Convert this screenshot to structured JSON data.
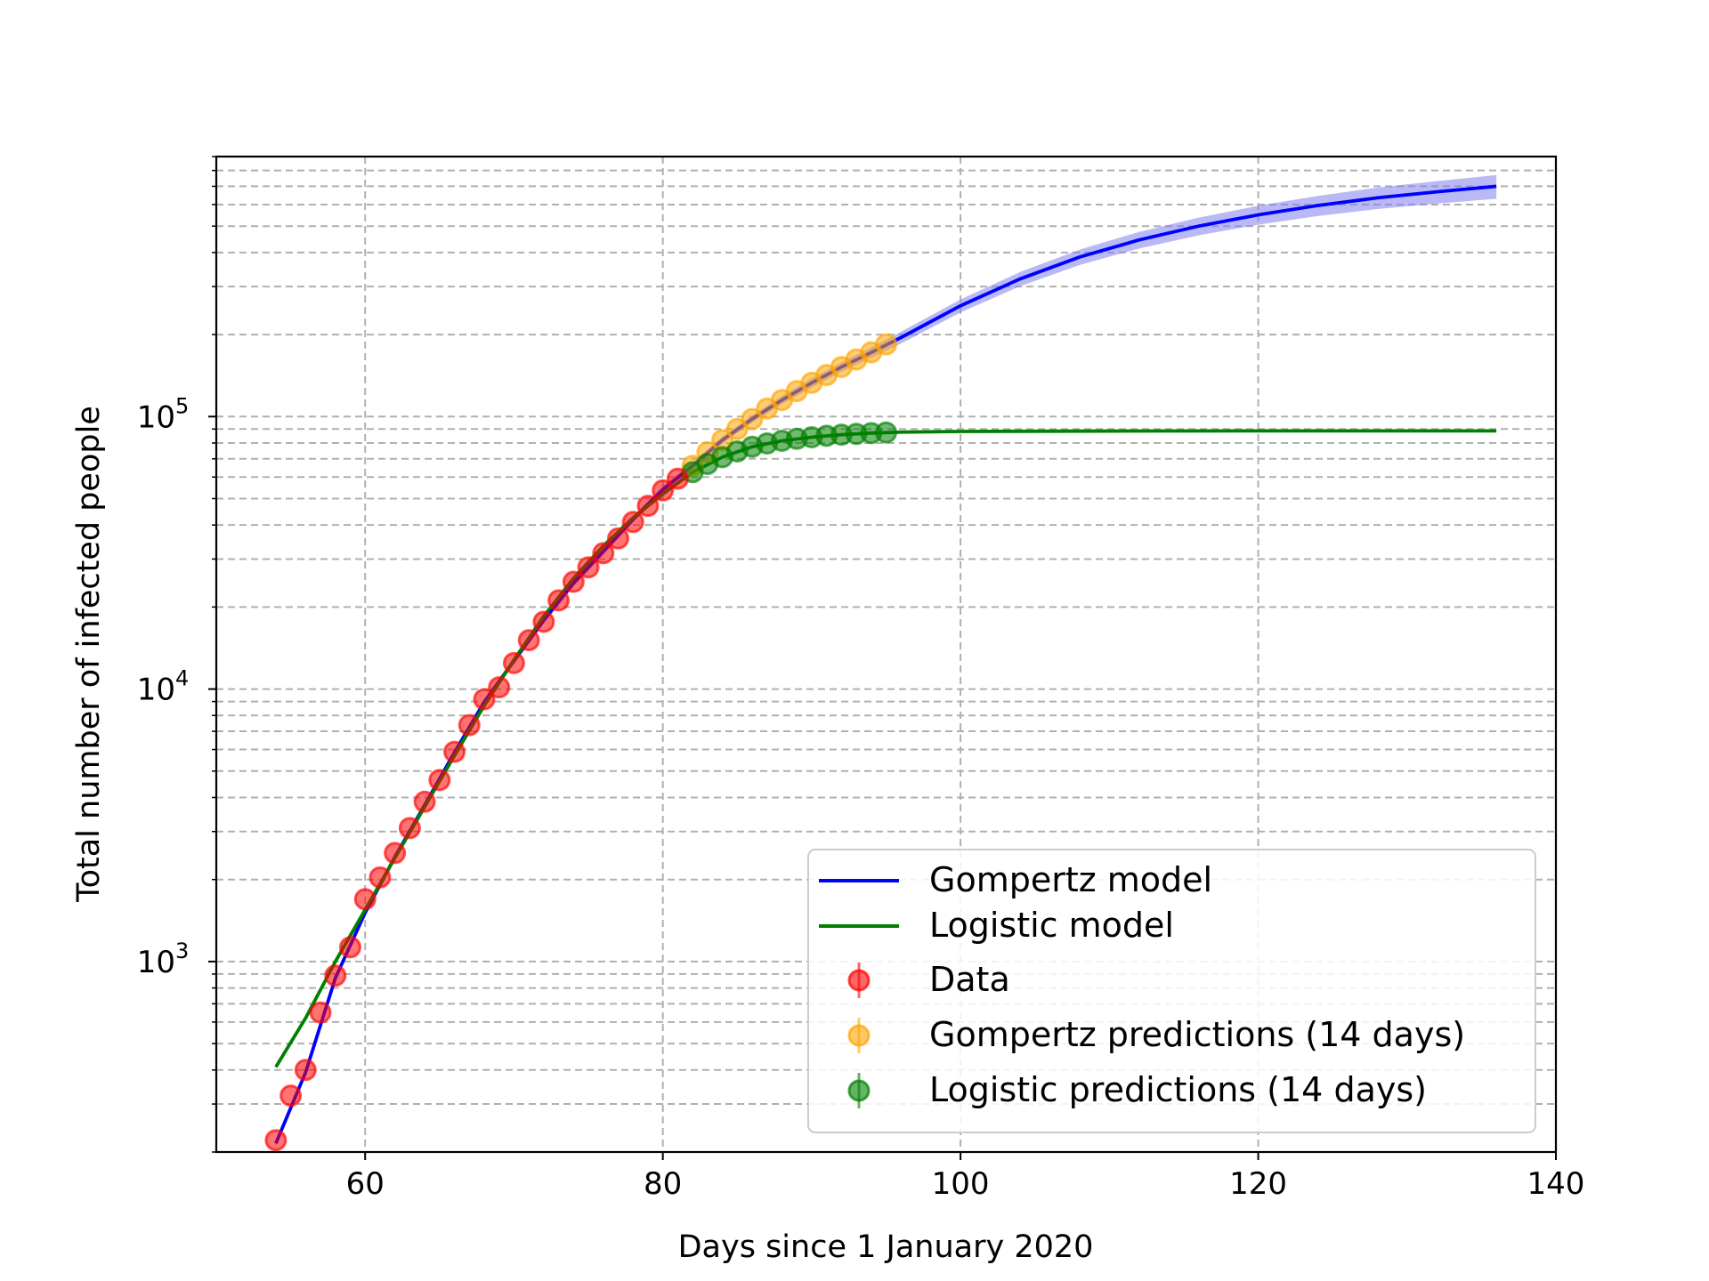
{
  "chart_data": {
    "type": "scatter",
    "xlabel": "Days since 1 January 2020",
    "ylabel": "Total number of infected people",
    "xlim": [
      50,
      140
    ],
    "ylim": [
      200,
      900000
    ],
    "yscale": "log",
    "grid": true,
    "legend_position": "lower-right",
    "x_ticks": [
      60,
      80,
      100,
      120,
      140
    ],
    "y_ticks": [
      {
        "value": 1000,
        "base": "10",
        "exp": "3"
      },
      {
        "value": 10000,
        "base": "10",
        "exp": "4"
      },
      {
        "value": 100000,
        "base": "10",
        "exp": "5"
      }
    ],
    "series": [
      {
        "name": "Gompertz model",
        "kind": "line",
        "color": "#0000ff",
        "band_color": "#8080ee",
        "x": [
          54,
          56,
          58,
          60,
          62,
          64,
          66,
          68,
          70,
          72,
          74,
          76,
          78,
          80,
          82,
          84,
          86,
          88,
          90,
          92,
          94,
          96,
          100,
          104,
          108,
          112,
          116,
          120,
          124,
          128,
          132,
          136
        ],
        "y": [
          215,
          392,
          870,
          1510,
          2420,
          3750,
          5850,
          8950,
          12700,
          17900,
          24500,
          32000,
          42000,
          54000,
          66000,
          82000,
          98000,
          115000,
          133000,
          152000,
          172000,
          195000,
          255000,
          320000,
          385000,
          445000,
          500000,
          550000,
          595000,
          635000,
          668000,
          700000
        ],
        "band": [
          0.03,
          0.03,
          0.03,
          0.03,
          0.03,
          0.03,
          0.03,
          0.03,
          0.03,
          0.03,
          0.03,
          0.03,
          0.03,
          0.03,
          0.03,
          0.03,
          0.03,
          0.035,
          0.04,
          0.04,
          0.045,
          0.05,
          0.055,
          0.06,
          0.065,
          0.07,
          0.075,
          0.08,
          0.085,
          0.09,
          0.095,
          0.1
        ]
      },
      {
        "name": "Logistic model",
        "kind": "line",
        "color": "#008000",
        "x": [
          54,
          56,
          58,
          60,
          62,
          64,
          66,
          68,
          70,
          72,
          74,
          76,
          78,
          80,
          82,
          84,
          86,
          88,
          90,
          92,
          94,
          96,
          100,
          110,
          120,
          136
        ],
        "y": [
          410,
          620,
          1000,
          1550,
          2400,
          3700,
          5700,
          8700,
          12800,
          18500,
          25500,
          33500,
          42500,
          52000,
          62500,
          71000,
          77500,
          81500,
          84000,
          85800,
          87000,
          87700,
          88200,
          88500,
          88600,
          88600
        ]
      },
      {
        "name": "Data",
        "kind": "markers",
        "color": "#ff0000",
        "x": [
          54,
          55,
          56,
          57,
          58,
          59,
          60,
          61,
          62,
          63,
          64,
          65,
          66,
          67,
          68,
          69,
          70,
          71,
          72,
          73,
          74,
          75,
          76,
          77,
          78,
          79,
          80,
          81
        ],
        "y": [
          221,
          322,
          400,
          650,
          888,
          1128,
          1694,
          2036,
          2502,
          3089,
          3858,
          4636,
          5883,
          7375,
          9172,
          10149,
          12462,
          15113,
          17660,
          21157,
          24747,
          27980,
          31506,
          35713,
          41035,
          47021,
          53578,
          59138
        ]
      },
      {
        "name": "Gompertz predictions (14 days)",
        "kind": "markers",
        "color": "#ffa500",
        "x": [
          82,
          83,
          84,
          85,
          86,
          87,
          88,
          89,
          90,
          91,
          92,
          93,
          94,
          95
        ],
        "y": [
          66000,
          74000,
          82000,
          90000,
          98000,
          107000,
          115000,
          124000,
          133000,
          142000,
          152000,
          162000,
          172000,
          184000
        ]
      },
      {
        "name": "Logistic predictions (14 days)",
        "kind": "markers",
        "color": "#008000",
        "x": [
          82,
          83,
          84,
          85,
          86,
          87,
          88,
          89,
          90,
          91,
          92,
          93,
          94,
          95
        ],
        "y": [
          62500,
          67000,
          71000,
          74500,
          77500,
          79700,
          81500,
          82900,
          84000,
          85000,
          85800,
          86400,
          87000,
          87400
        ]
      }
    ]
  }
}
